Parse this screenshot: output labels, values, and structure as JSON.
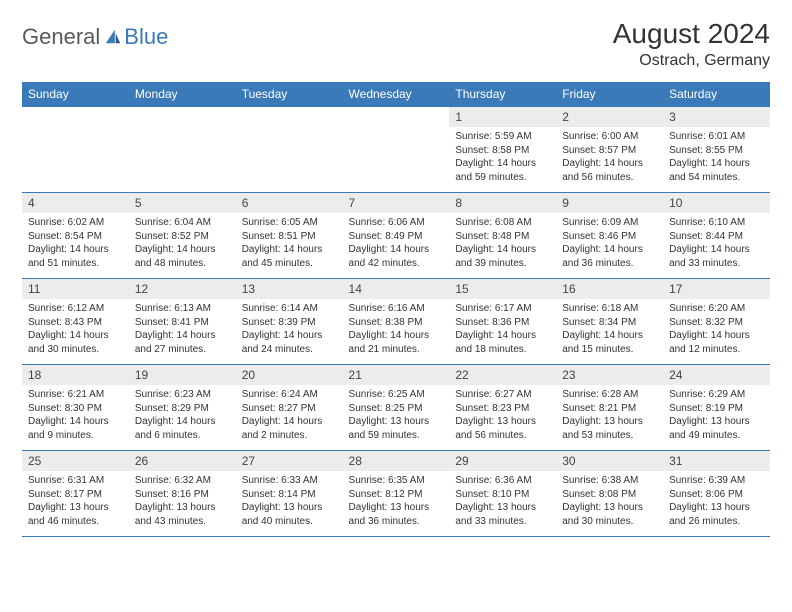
{
  "logo": {
    "text1": "General",
    "text2": "Blue"
  },
  "title": "August 2024",
  "location": "Ostrach, Germany",
  "colors": {
    "header_bg": "#3a7ab8",
    "header_fg": "#ffffff",
    "daynum_bg": "#ececec",
    "border": "#3a7ab8",
    "text": "#333333",
    "logo_gray": "#5a5a5a",
    "logo_blue": "#3a7ab8"
  },
  "weekdays": [
    "Sunday",
    "Monday",
    "Tuesday",
    "Wednesday",
    "Thursday",
    "Friday",
    "Saturday"
  ],
  "weeks": [
    [
      {
        "n": "",
        "sr": "",
        "ss": "",
        "dl": ""
      },
      {
        "n": "",
        "sr": "",
        "ss": "",
        "dl": ""
      },
      {
        "n": "",
        "sr": "",
        "ss": "",
        "dl": ""
      },
      {
        "n": "",
        "sr": "",
        "ss": "",
        "dl": ""
      },
      {
        "n": "1",
        "sr": "Sunrise: 5:59 AM",
        "ss": "Sunset: 8:58 PM",
        "dl": "Daylight: 14 hours and 59 minutes."
      },
      {
        "n": "2",
        "sr": "Sunrise: 6:00 AM",
        "ss": "Sunset: 8:57 PM",
        "dl": "Daylight: 14 hours and 56 minutes."
      },
      {
        "n": "3",
        "sr": "Sunrise: 6:01 AM",
        "ss": "Sunset: 8:55 PM",
        "dl": "Daylight: 14 hours and 54 minutes."
      }
    ],
    [
      {
        "n": "4",
        "sr": "Sunrise: 6:02 AM",
        "ss": "Sunset: 8:54 PM",
        "dl": "Daylight: 14 hours and 51 minutes."
      },
      {
        "n": "5",
        "sr": "Sunrise: 6:04 AM",
        "ss": "Sunset: 8:52 PM",
        "dl": "Daylight: 14 hours and 48 minutes."
      },
      {
        "n": "6",
        "sr": "Sunrise: 6:05 AM",
        "ss": "Sunset: 8:51 PM",
        "dl": "Daylight: 14 hours and 45 minutes."
      },
      {
        "n": "7",
        "sr": "Sunrise: 6:06 AM",
        "ss": "Sunset: 8:49 PM",
        "dl": "Daylight: 14 hours and 42 minutes."
      },
      {
        "n": "8",
        "sr": "Sunrise: 6:08 AM",
        "ss": "Sunset: 8:48 PM",
        "dl": "Daylight: 14 hours and 39 minutes."
      },
      {
        "n": "9",
        "sr": "Sunrise: 6:09 AM",
        "ss": "Sunset: 8:46 PM",
        "dl": "Daylight: 14 hours and 36 minutes."
      },
      {
        "n": "10",
        "sr": "Sunrise: 6:10 AM",
        "ss": "Sunset: 8:44 PM",
        "dl": "Daylight: 14 hours and 33 minutes."
      }
    ],
    [
      {
        "n": "11",
        "sr": "Sunrise: 6:12 AM",
        "ss": "Sunset: 8:43 PM",
        "dl": "Daylight: 14 hours and 30 minutes."
      },
      {
        "n": "12",
        "sr": "Sunrise: 6:13 AM",
        "ss": "Sunset: 8:41 PM",
        "dl": "Daylight: 14 hours and 27 minutes."
      },
      {
        "n": "13",
        "sr": "Sunrise: 6:14 AM",
        "ss": "Sunset: 8:39 PM",
        "dl": "Daylight: 14 hours and 24 minutes."
      },
      {
        "n": "14",
        "sr": "Sunrise: 6:16 AM",
        "ss": "Sunset: 8:38 PM",
        "dl": "Daylight: 14 hours and 21 minutes."
      },
      {
        "n": "15",
        "sr": "Sunrise: 6:17 AM",
        "ss": "Sunset: 8:36 PM",
        "dl": "Daylight: 14 hours and 18 minutes."
      },
      {
        "n": "16",
        "sr": "Sunrise: 6:18 AM",
        "ss": "Sunset: 8:34 PM",
        "dl": "Daylight: 14 hours and 15 minutes."
      },
      {
        "n": "17",
        "sr": "Sunrise: 6:20 AM",
        "ss": "Sunset: 8:32 PM",
        "dl": "Daylight: 14 hours and 12 minutes."
      }
    ],
    [
      {
        "n": "18",
        "sr": "Sunrise: 6:21 AM",
        "ss": "Sunset: 8:30 PM",
        "dl": "Daylight: 14 hours and 9 minutes."
      },
      {
        "n": "19",
        "sr": "Sunrise: 6:23 AM",
        "ss": "Sunset: 8:29 PM",
        "dl": "Daylight: 14 hours and 6 minutes."
      },
      {
        "n": "20",
        "sr": "Sunrise: 6:24 AM",
        "ss": "Sunset: 8:27 PM",
        "dl": "Daylight: 14 hours and 2 minutes."
      },
      {
        "n": "21",
        "sr": "Sunrise: 6:25 AM",
        "ss": "Sunset: 8:25 PM",
        "dl": "Daylight: 13 hours and 59 minutes."
      },
      {
        "n": "22",
        "sr": "Sunrise: 6:27 AM",
        "ss": "Sunset: 8:23 PM",
        "dl": "Daylight: 13 hours and 56 minutes."
      },
      {
        "n": "23",
        "sr": "Sunrise: 6:28 AM",
        "ss": "Sunset: 8:21 PM",
        "dl": "Daylight: 13 hours and 53 minutes."
      },
      {
        "n": "24",
        "sr": "Sunrise: 6:29 AM",
        "ss": "Sunset: 8:19 PM",
        "dl": "Daylight: 13 hours and 49 minutes."
      }
    ],
    [
      {
        "n": "25",
        "sr": "Sunrise: 6:31 AM",
        "ss": "Sunset: 8:17 PM",
        "dl": "Daylight: 13 hours and 46 minutes."
      },
      {
        "n": "26",
        "sr": "Sunrise: 6:32 AM",
        "ss": "Sunset: 8:16 PM",
        "dl": "Daylight: 13 hours and 43 minutes."
      },
      {
        "n": "27",
        "sr": "Sunrise: 6:33 AM",
        "ss": "Sunset: 8:14 PM",
        "dl": "Daylight: 13 hours and 40 minutes."
      },
      {
        "n": "28",
        "sr": "Sunrise: 6:35 AM",
        "ss": "Sunset: 8:12 PM",
        "dl": "Daylight: 13 hours and 36 minutes."
      },
      {
        "n": "29",
        "sr": "Sunrise: 6:36 AM",
        "ss": "Sunset: 8:10 PM",
        "dl": "Daylight: 13 hours and 33 minutes."
      },
      {
        "n": "30",
        "sr": "Sunrise: 6:38 AM",
        "ss": "Sunset: 8:08 PM",
        "dl": "Daylight: 13 hours and 30 minutes."
      },
      {
        "n": "31",
        "sr": "Sunrise: 6:39 AM",
        "ss": "Sunset: 8:06 PM",
        "dl": "Daylight: 13 hours and 26 minutes."
      }
    ]
  ]
}
